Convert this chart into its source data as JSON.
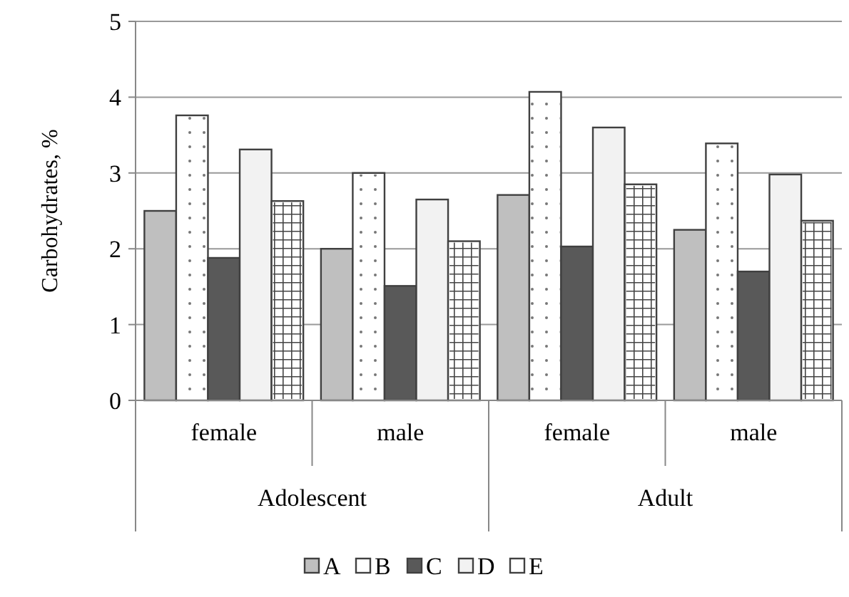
{
  "chart_data": {
    "type": "bar",
    "ylabel": "Carbohydrates, %",
    "categories": [
      "female",
      "male",
      "female",
      "male"
    ],
    "annotations": [
      "Adolescent",
      "Adult"
    ],
    "ylim": [
      0,
      5
    ],
    "yticks": [
      0,
      1,
      2,
      3,
      4,
      5
    ],
    "grid": "y",
    "legend": "bottom",
    "series": [
      {
        "name": "A",
        "color": "#bfbfbf",
        "values": [
          2.5,
          2.0,
          2.71,
          2.25
        ]
      },
      {
        "name": "B",
        "color": "#ffffff",
        "values": [
          3.76,
          3.0,
          4.07,
          3.39
        ]
      },
      {
        "name": "C",
        "color": "#595959",
        "values": [
          1.88,
          1.51,
          2.03,
          1.7
        ]
      },
      {
        "name": "D",
        "color": "#f2f2f2",
        "values": [
          3.31,
          2.65,
          3.6,
          2.98
        ]
      },
      {
        "name": "E",
        "color": "#ffffff",
        "values": [
          2.63,
          2.1,
          2.85,
          2.37
        ]
      }
    ]
  }
}
